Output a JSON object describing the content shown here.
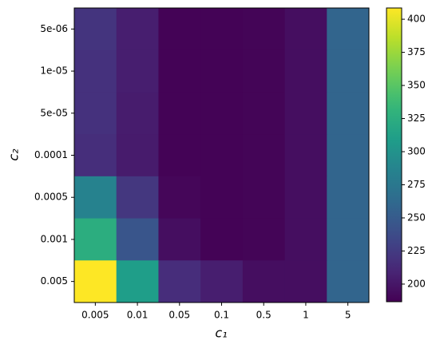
{
  "chart_data": {
    "type": "heatmap",
    "x_label": "c₁",
    "y_label": "c₂",
    "categories": [
      "0.005",
      "0.01",
      "0.05",
      "0.1",
      "0.5",
      "1",
      "5"
    ],
    "y_categories": [
      "5e-06",
      "1e-05",
      "5e-05",
      "0.0001",
      "0.0005",
      "0.001",
      "0.005"
    ],
    "values": [
      [
        220,
        205,
        188,
        188,
        189,
        195,
        258
      ],
      [
        218,
        205,
        188,
        188,
        189,
        195,
        258
      ],
      [
        218,
        204,
        188,
        188,
        189,
        195,
        258
      ],
      [
        216,
        203,
        188,
        188,
        189,
        195,
        258
      ],
      [
        285,
        222,
        190,
        188,
        189,
        195,
        258
      ],
      [
        325,
        245,
        195,
        188,
        189,
        195,
        258
      ],
      [
        409,
        310,
        215,
        205,
        195,
        195,
        258
      ]
    ],
    "colormap": "viridis",
    "clim": [
      186.7,
      408.5
    ],
    "cticks": [
      200,
      225,
      250,
      275,
      300,
      325,
      350,
      375,
      400
    ]
  }
}
